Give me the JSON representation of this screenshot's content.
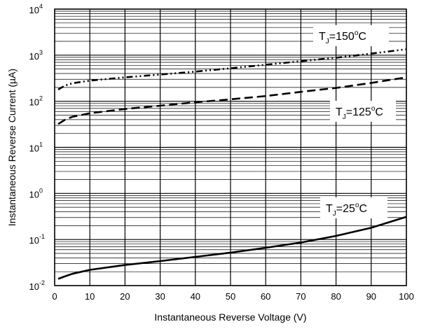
{
  "chart_data": {
    "type": "line",
    "title": "",
    "xlabel": "Instantaneous Reverse Voltage (V)",
    "ylabel": "Instantaneous Reverse Current (µA)",
    "x_ticks": [
      0,
      10,
      20,
      30,
      40,
      50,
      60,
      70,
      80,
      90,
      100
    ],
    "y_ticks": [
      {
        "base": "10",
        "exp": "-2",
        "value": 0.01
      },
      {
        "base": "10",
        "exp": "-1",
        "value": 0.1
      },
      {
        "base": "10",
        "exp": "0",
        "value": 1
      },
      {
        "base": "10",
        "exp": "1",
        "value": 10
      },
      {
        "base": "10",
        "exp": "2",
        "value": 100
      },
      {
        "base": "10",
        "exp": "3",
        "value": 1000
      },
      {
        "base": "10",
        "exp": "4",
        "value": 10000
      }
    ],
    "xlim": [
      0,
      100
    ],
    "ylim": [
      0.01,
      10000
    ],
    "y_scale": "log",
    "grid": true,
    "series": [
      {
        "label_t": "T",
        "label_sub": "J",
        "label_rest": "=150",
        "label_deg": "o",
        "label_unit": "C",
        "dash": "dash-dot-dot",
        "x": [
          1,
          3,
          5,
          10,
          20,
          30,
          40,
          50,
          60,
          70,
          80,
          90,
          100
        ],
        "y": [
          180,
          220,
          245,
          280,
          330,
          380,
          440,
          520,
          620,
          740,
          880,
          1080,
          1350
        ]
      },
      {
        "label_t": "T",
        "label_sub": "J",
        "label_rest": "=125",
        "label_deg": "o",
        "label_unit": "C",
        "dash": "dash",
        "x": [
          1,
          3,
          5,
          10,
          20,
          30,
          40,
          50,
          60,
          70,
          80,
          90,
          100
        ],
        "y": [
          32,
          40,
          46,
          55,
          68,
          80,
          95,
          110,
          130,
          160,
          195,
          250,
          330
        ]
      },
      {
        "label_t": "T",
        "label_sub": "J",
        "label_rest": "=25",
        "label_deg": "o",
        "label_unit": "C",
        "dash": "solid",
        "x": [
          1,
          3,
          5,
          10,
          20,
          30,
          40,
          50,
          60,
          70,
          80,
          90,
          100
        ],
        "y": [
          0.014,
          0.016,
          0.018,
          0.022,
          0.028,
          0.034,
          0.042,
          0.052,
          0.066,
          0.086,
          0.12,
          0.18,
          0.31
        ]
      }
    ]
  }
}
